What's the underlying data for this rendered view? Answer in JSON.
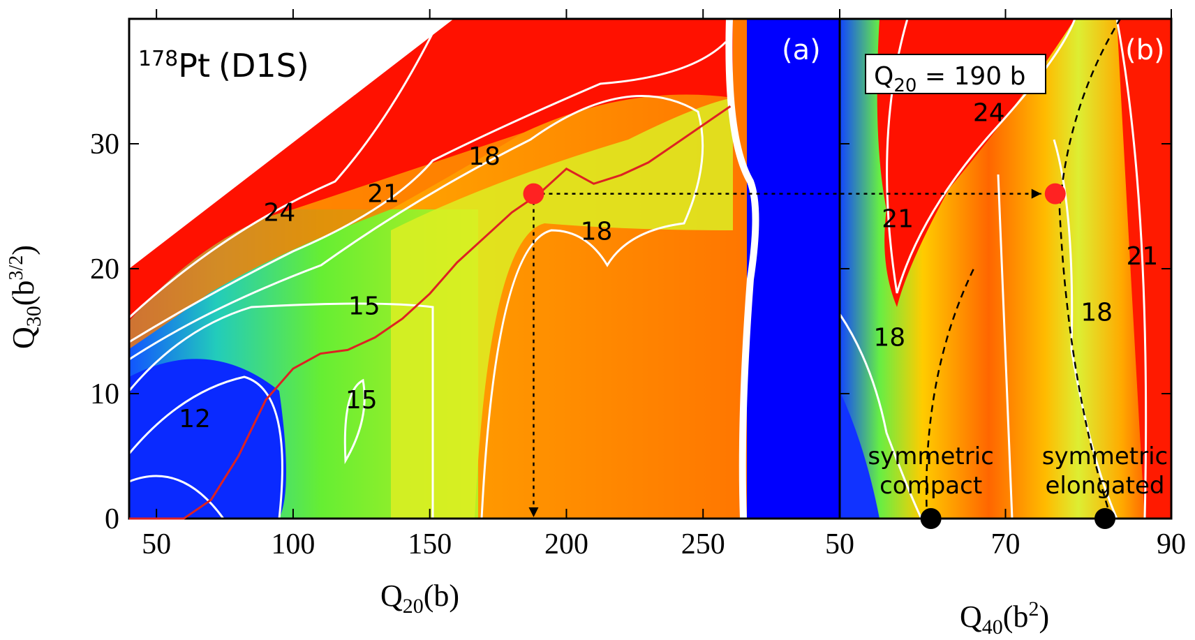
{
  "chart_data": [
    {
      "panel": "(a)",
      "type": "heatmap",
      "nucleus": {
        "mass": "178",
        "symbol": "Pt",
        "functional": "(D1S)"
      },
      "xlabel": {
        "base": "Q",
        "sub": "20",
        "unit": "(b)"
      },
      "ylabel": {
        "base": "Q",
        "sub": "30",
        "unit_pre": "(b",
        "unit_sup": "3/2",
        "unit_post": ")"
      },
      "xlim": [
        40,
        300
      ],
      "ylim": [
        0,
        40
      ],
      "x_ticks": [
        50,
        100,
        150,
        200,
        250
      ],
      "y_ticks": [
        0,
        10,
        20,
        30
      ],
      "contour_labels": [
        {
          "text": "24",
          "x": 95,
          "y": 24.5
        },
        {
          "text": "21",
          "x": 133,
          "y": 26
        },
        {
          "text": "18",
          "x": 170,
          "y": 29
        },
        {
          "text": "18",
          "x": 211,
          "y": 23
        },
        {
          "text": "15",
          "x": 126,
          "y": 17
        },
        {
          "text": "15",
          "x": 125,
          "y": 9.5
        },
        {
          "text": "12",
          "x": 64,
          "y": 8
        }
      ],
      "fission_path": {
        "x": [
          40,
          60,
          70,
          80,
          90,
          100,
          110,
          120,
          130,
          140,
          150,
          160,
          170,
          180,
          190,
          200,
          210,
          220,
          230,
          240,
          250,
          260
        ],
        "y": [
          0,
          0,
          1.5,
          5,
          9.5,
          12,
          13.2,
          13.5,
          14.5,
          16,
          18,
          20.5,
          22.5,
          24.5,
          26,
          28,
          26.8,
          27.5,
          28.5,
          30,
          31.5,
          33
        ]
      },
      "marker": {
        "x": 188,
        "y": 26
      },
      "arrow_down_to": {
        "x": 188,
        "y": 0
      }
    },
    {
      "panel": "(b)",
      "type": "heatmap",
      "fixed_q20": "Q20 = 190 b",
      "fixed_q20_parts": {
        "base": "Q",
        "sub": "20",
        "rest": " = 190 b"
      },
      "xlabel": {
        "base": "Q",
        "sub": "40",
        "unit_pre": "(b",
        "unit_sup": "2",
        "unit_post": ")"
      },
      "xlim": [
        50,
        90
      ],
      "ylim": [
        0,
        40
      ],
      "x_ticks": [
        50,
        70,
        90
      ],
      "contour_labels": [
        {
          "text": "24",
          "x": 68,
          "y": 32.5
        },
        {
          "text": "21",
          "x": 57,
          "y": 24
        },
        {
          "text": "21",
          "x": 86.5,
          "y": 21
        },
        {
          "text": "18",
          "x": 56,
          "y": 14.5
        },
        {
          "text": "18",
          "x": 81,
          "y": 16.5
        }
      ],
      "marker": {
        "x": 76,
        "y": 26
      },
      "minima": [
        {
          "label_line1": "symmetric",
          "label_line2": "compact",
          "x": 61,
          "y": 0
        },
        {
          "label_line1": "symmetric",
          "label_line2": "elongated",
          "x": 82,
          "y": 0
        }
      ]
    }
  ],
  "colors": {
    "red": "#ff0000",
    "orange": "#ff8800",
    "yellow": "#ffdd00",
    "green": "#44ee44",
    "blue": "#0000ff",
    "contour": "#ffffff",
    "path": "#dd2222",
    "marker": "#ff2222"
  }
}
